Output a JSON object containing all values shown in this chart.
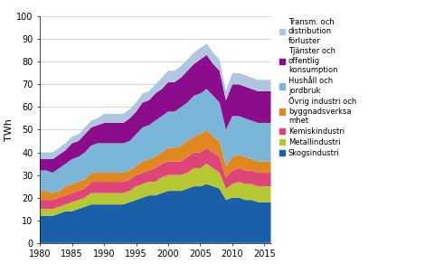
{
  "years": [
    1980,
    1981,
    1982,
    1983,
    1984,
    1985,
    1986,
    1987,
    1988,
    1989,
    1990,
    1991,
    1992,
    1993,
    1994,
    1995,
    1996,
    1997,
    1998,
    1999,
    2000,
    2001,
    2002,
    2003,
    2004,
    2005,
    2006,
    2007,
    2008,
    2009,
    2010,
    2011,
    2012,
    2013,
    2014,
    2015,
    2016
  ],
  "series": {
    "Skogsindustri": [
      12,
      12,
      12,
      13,
      14,
      14,
      15,
      16,
      17,
      17,
      17,
      17,
      17,
      17,
      18,
      19,
      20,
      21,
      21,
      22,
      23,
      23,
      23,
      24,
      25,
      25,
      26,
      25,
      24,
      19,
      20,
      20,
      19,
      19,
      18,
      18,
      18
    ],
    "Metallindustri": [
      3,
      3,
      3,
      3,
      3,
      4,
      4,
      4,
      5,
      5,
      5,
      5,
      5,
      5,
      5,
      6,
      6,
      6,
      6,
      7,
      7,
      7,
      7,
      7,
      8,
      8,
      9,
      8,
      7,
      5,
      6,
      7,
      7,
      7,
      7,
      7,
      7
    ],
    "Kemiskindustri": [
      4,
      4,
      4,
      4,
      4,
      4,
      4,
      4,
      5,
      5,
      5,
      5,
      5,
      5,
      5,
      5,
      5,
      5,
      6,
      6,
      6,
      6,
      6,
      7,
      7,
      7,
      7,
      7,
      7,
      5,
      6,
      6,
      6,
      6,
      6,
      6,
      6
    ],
    "Ovrig_industri": [
      4,
      4,
      3,
      3,
      4,
      4,
      4,
      4,
      4,
      4,
      4,
      4,
      4,
      4,
      4,
      4,
      5,
      5,
      5,
      5,
      6,
      6,
      7,
      7,
      7,
      8,
      8,
      7,
      7,
      5,
      6,
      6,
      6,
      5,
      5,
      5,
      5
    ],
    "Hushall_och_jordbruk": [
      9,
      9,
      9,
      10,
      10,
      11,
      11,
      12,
      12,
      13,
      13,
      13,
      13,
      13,
      13,
      14,
      15,
      15,
      16,
      16,
      16,
      16,
      17,
      17,
      18,
      18,
      18,
      18,
      17,
      16,
      18,
      17,
      17,
      17,
      17,
      17,
      17
    ],
    "Tjanster_och_offentlig": [
      5,
      5,
      6,
      6,
      6,
      7,
      7,
      8,
      8,
      8,
      9,
      9,
      9,
      9,
      10,
      10,
      11,
      11,
      12,
      12,
      13,
      13,
      13,
      14,
      14,
      15,
      15,
      14,
      14,
      13,
      14,
      14,
      14,
      14,
      14,
      14,
      14
    ],
    "Transm_och_distribution": [
      3,
      3,
      3,
      3,
      3,
      3,
      3,
      3,
      3,
      3,
      4,
      4,
      4,
      4,
      4,
      4,
      4,
      4,
      4,
      5,
      5,
      5,
      5,
      5,
      5,
      5,
      5,
      5,
      5,
      4,
      5,
      5,
      5,
      5,
      5,
      5,
      5
    ]
  },
  "colors": {
    "Skogsindustri": "#1a5fa8",
    "Metallindustri": "#b5c832",
    "Kemiskindustri": "#e0457a",
    "Ovrig_industri": "#e08820",
    "Hushall_och_jordbruk": "#7ab6d8",
    "Tjanster_och_offentlig": "#8b0d8b",
    "Transm_och_distribution": "#aec6e0"
  },
  "legend_labels": {
    "Transm_och_distribution": "Transm. och\ndistribution\nförluster",
    "Tjanster_och_offentlig": "Tjänster och\noffentlig\nkonsumption",
    "Hushall_och_jordbruk": "Hushåll och\njordbruk",
    "Ovrig_industri": "Övrig industri och\nbyggnadsverksa\nmhet",
    "Kemiskindustri": "Kemiskindustri",
    "Metallindustri": "Metallindustri",
    "Skogsindustri": "Skogsindustri"
  },
  "ylabel": "TWh",
  "ylim": [
    0,
    100
  ],
  "yticks": [
    0,
    10,
    20,
    30,
    40,
    50,
    60,
    70,
    80,
    90,
    100
  ],
  "xticks": [
    1980,
    1985,
    1990,
    1995,
    2000,
    2005,
    2010,
    2015
  ],
  "background_color": "#ffffff",
  "grid_color": "#b0b0b0"
}
